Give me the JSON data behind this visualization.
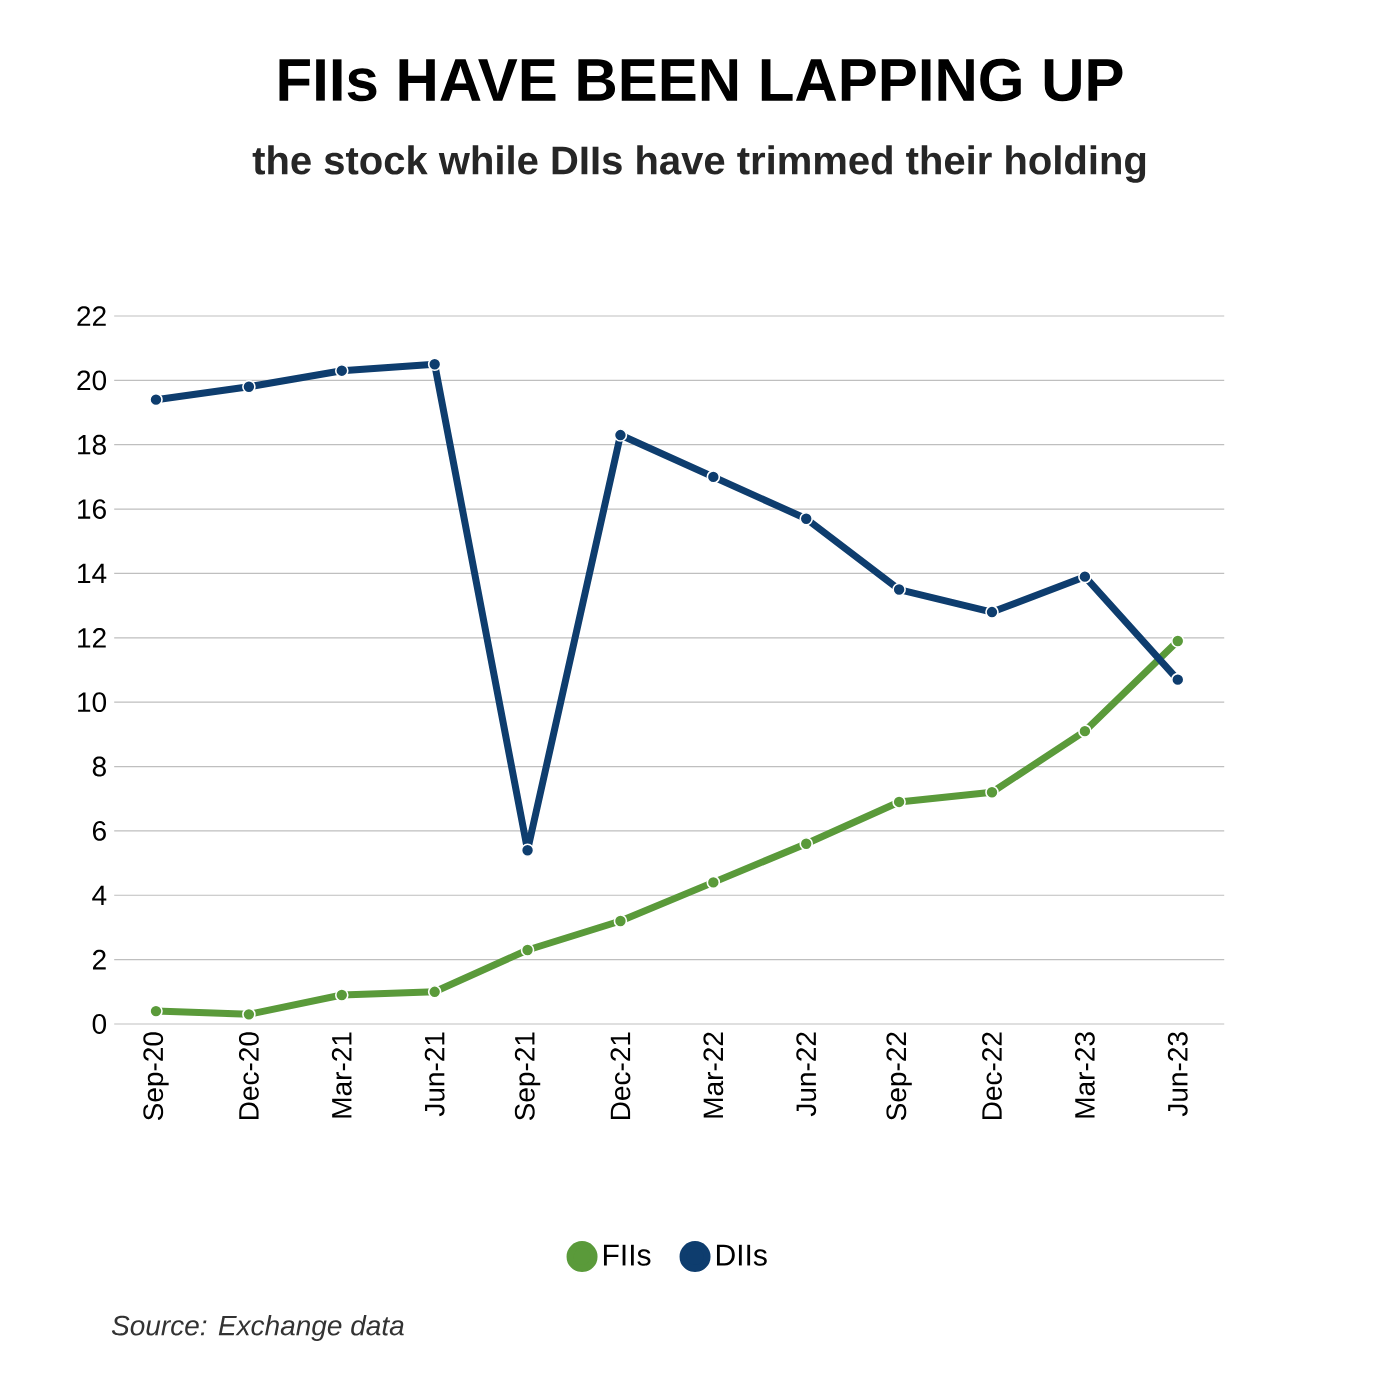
{
  "chart_data": {
    "type": "line",
    "title": "FIIs HAVE BEEN LAPPING UP",
    "subtitle": "the stock while DIIs have trimmed their holding",
    "categories": [
      "Sep-20",
      "Dec-20",
      "Mar-21",
      "Jun-21",
      "Sep-21",
      "Dec-21",
      "Mar-22",
      "Jun-22",
      "Sep-22",
      "Dec-22",
      "Mar-23",
      "Jun-23"
    ],
    "series": [
      {
        "name": "FIIs",
        "color": "#5a9a3a",
        "values": [
          0.4,
          0.3,
          0.9,
          1.0,
          2.3,
          3.2,
          4.4,
          5.6,
          6.9,
          7.2,
          9.1,
          11.9
        ]
      },
      {
        "name": "DIIs",
        "color": "#0e3d6e",
        "values": [
          19.4,
          19.8,
          20.3,
          20.5,
          5.4,
          18.3,
          17.0,
          15.7,
          13.5,
          12.8,
          13.9,
          10.7
        ]
      }
    ],
    "ylim": [
      0,
      22
    ],
    "yticks": [
      0,
      2,
      4,
      6,
      8,
      10,
      12,
      14,
      16,
      18,
      20,
      22
    ],
    "grid": "y",
    "legend": "bottom",
    "marker": "circle",
    "line_style": "solid",
    "annotations": [
      "Source: Exchange data"
    ]
  }
}
